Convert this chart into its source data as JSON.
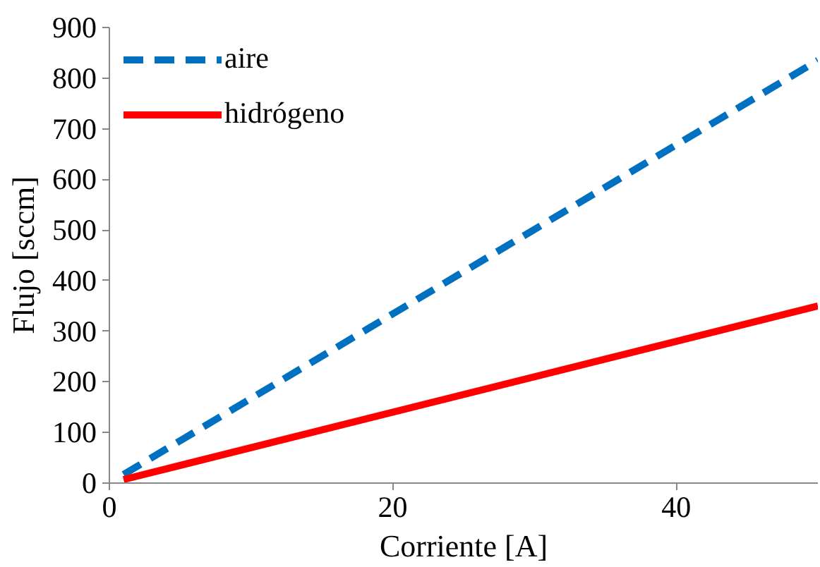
{
  "chart_data": {
    "type": "line",
    "xlabel": "Corriente [A]",
    "ylabel": "Flujo [sccm]",
    "x": [
      1,
      50
    ],
    "xlim": [
      0,
      50
    ],
    "xticks": [
      0,
      20,
      40
    ],
    "ylim": [
      0,
      900
    ],
    "yticks": [
      0,
      100,
      200,
      300,
      400,
      500,
      600,
      700,
      800,
      900
    ],
    "grid": false,
    "legend": "top left",
    "marker": "none",
    "series": [
      {
        "name": "aire",
        "color": "#0070c0",
        "line_style": "dashed",
        "values": [
          17,
          835
        ]
      },
      {
        "name": "hidrógeno",
        "color": "#ff0000",
        "line_style": "solid",
        "values": [
          7,
          350
        ]
      }
    ]
  }
}
